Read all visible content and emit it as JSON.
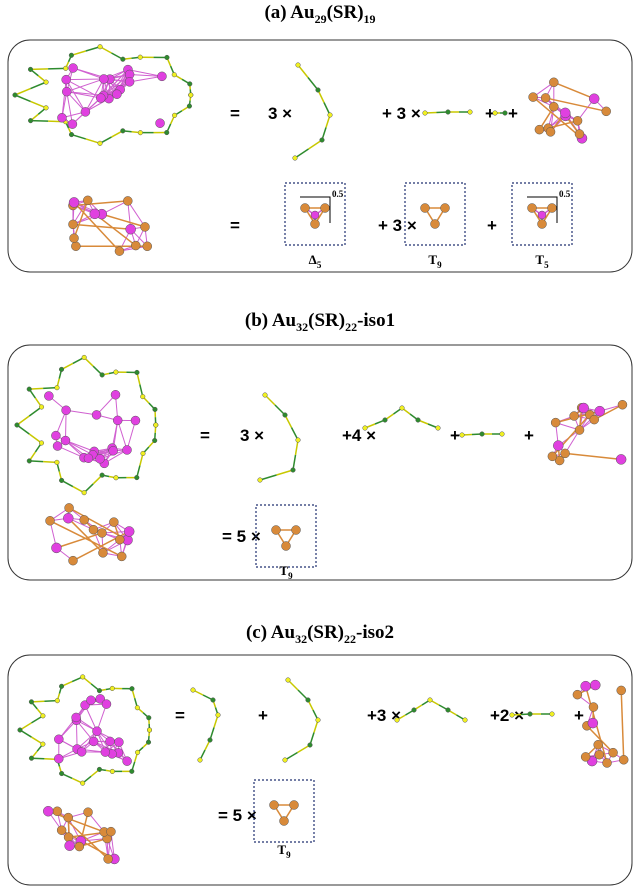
{
  "panels": [
    {
      "title": {
        "label": "(a) Au",
        "au": "29",
        "mid": "(SR)",
        "sr": "19"
      },
      "rows": [
        {
          "terms": [
            "=",
            "3 ×",
            "+ 3 ×",
            "+",
            "+"
          ]
        },
        {
          "terms": [
            "=",
            "+ 3 ×",
            "+"
          ],
          "boxes": [
            {
              "name": {
                "symbol": "Δ",
                "sub": "5"
              },
              "note": "0.5"
            },
            {
              "name": {
                "symbol": "T",
                "sub": "9"
              }
            },
            {
              "name": {
                "symbol": "T",
                "sub": "5"
              },
              "note": "0.5"
            }
          ]
        }
      ]
    },
    {
      "title": {
        "label": "(b) Au",
        "au": "32",
        "mid": "(SR)",
        "sr": "22",
        "suffix": "-iso1"
      },
      "rows": [
        {
          "terms": [
            "=",
            "3 ×",
            "+4 ×",
            "+",
            "+"
          ]
        },
        {
          "terms": [
            "= 5 ×"
          ],
          "boxes": [
            {
              "name": {
                "symbol": "T",
                "sub": "9"
              }
            }
          ]
        }
      ]
    },
    {
      "title": {
        "label": "(c) Au",
        "au": "32",
        "mid": "(SR)",
        "sr": "22",
        "suffix": "-iso2"
      },
      "rows": [
        {
          "terms": [
            "=",
            "+",
            "+3 ×",
            "+2 ×",
            "+"
          ]
        },
        {
          "terms": [
            "= 5 ×"
          ],
          "boxes": [
            {
              "name": {
                "symbol": "T",
                "sub": "9"
              }
            }
          ]
        }
      ]
    }
  ]
}
